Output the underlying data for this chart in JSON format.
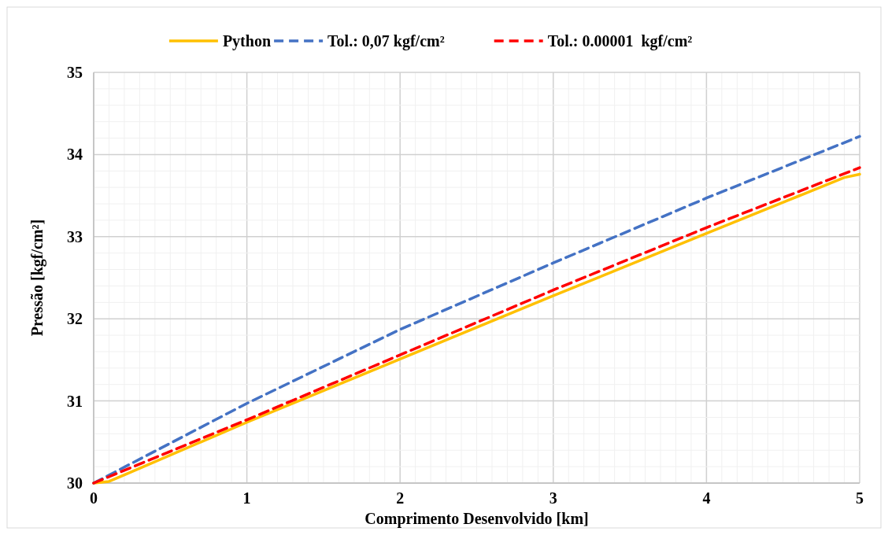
{
  "chart_data": {
    "type": "line",
    "xlabel": "Comprimento Desenvolvido [km]",
    "ylabel": "Pressão [kgf/cm²]",
    "xlim": [
      0,
      5
    ],
    "ylim": [
      30,
      35
    ],
    "xticks": [
      0,
      {
        "value": 0.1,
        "label": null
      },
      {
        "value": 0.2,
        "label": null
      },
      {
        "value": 0.3,
        "label": null
      },
      {
        "value": 0.4,
        "label": null
      },
      {
        "value": 0.5,
        "label": null
      },
      {
        "value": 0.6,
        "label": null
      },
      {
        "value": 0.7,
        "label": null
      },
      {
        "value": 0.8,
        "label": null
      },
      {
        "value": 0.9,
        "label": null
      },
      1,
      {
        "value": 1.1,
        "label": null
      },
      {
        "value": 1.2,
        "label": null
      },
      {
        "value": 1.3,
        "label": null
      },
      {
        "value": 1.4,
        "label": null
      },
      {
        "value": 1.5,
        "label": null
      },
      {
        "value": 1.6,
        "label": null
      },
      {
        "value": 1.7,
        "label": null
      },
      {
        "value": 1.8,
        "label": null
      },
      {
        "value": 1.9,
        "label": null
      },
      2,
      {
        "value": 2.1,
        "label": null
      },
      {
        "value": 2.2,
        "label": null
      },
      {
        "value": 2.3,
        "label": null
      },
      {
        "value": 2.4,
        "label": null
      },
      {
        "value": 2.5,
        "label": null
      },
      {
        "value": 2.6,
        "label": null
      },
      {
        "value": 2.7,
        "label": null
      },
      {
        "value": 2.8,
        "label": null
      },
      {
        "value": 2.9,
        "label": null
      },
      3,
      {
        "value": 3.1,
        "label": null
      },
      {
        "value": 3.2,
        "label": null
      },
      {
        "value": 3.3,
        "label": null
      },
      {
        "value": 3.4,
        "label": null
      },
      {
        "value": 3.5,
        "label": null
      },
      {
        "value": 3.6,
        "label": null
      },
      {
        "value": 3.7,
        "label": null
      },
      {
        "value": 3.8,
        "label": null
      },
      {
        "value": 3.9,
        "label": null
      },
      4,
      {
        "value": 4.1,
        "label": null
      },
      {
        "value": 4.2,
        "label": null
      },
      {
        "value": 4.3,
        "label": null
      },
      {
        "value": 4.4,
        "label": null
      },
      {
        "value": 4.5,
        "label": null
      },
      {
        "value": 4.6,
        "label": null
      },
      {
        "value": 4.7,
        "label": null
      },
      {
        "value": 4.8,
        "label": null
      },
      {
        "value": 4.9,
        "label": null
      },
      5
    ],
    "yticks": [
      30,
      {
        "value": 30.2,
        "label": null
      },
      {
        "value": 30.4,
        "label": null
      },
      {
        "value": 30.6,
        "label": null
      },
      {
        "value": 30.8,
        "label": null
      },
      31,
      {
        "value": 31.2,
        "label": null
      },
      {
        "value": 31.4,
        "label": null
      },
      {
        "value": 31.6,
        "label": null
      },
      {
        "value": 31.8,
        "label": null
      },
      32,
      {
        "value": 32.2,
        "label": null
      },
      {
        "value": 32.4,
        "label": null
      },
      {
        "value": 32.6,
        "label": null
      },
      {
        "value": 32.8,
        "label": null
      },
      33,
      {
        "value": 33.2,
        "label": null
      },
      {
        "value": 33.4,
        "label": null
      },
      {
        "value": 33.6,
        "label": null
      },
      {
        "value": 33.8,
        "label": null
      },
      34,
      {
        "value": 34.2,
        "label": null
      },
      {
        "value": 34.4,
        "label": null
      },
      {
        "value": 34.6,
        "label": null
      },
      {
        "value": 34.8,
        "label": null
      },
      35
    ],
    "grid": true,
    "legend": "top",
    "series": [
      {
        "name": "Python",
        "color": "#ffc000",
        "line_style": "solid",
        "x": [
          0,
          0.1,
          0.2,
          1,
          2,
          3,
          4,
          4.9,
          5
        ],
        "values": [
          30,
          30.02,
          30.1,
          30.74,
          31.51,
          32.28,
          33.04,
          33.72,
          33.76
        ]
      },
      {
        "name": "Tol.: 0,07 kgf/cm²",
        "color": "#4472c4",
        "line_style": "dashed",
        "x": [
          0,
          1,
          2,
          3,
          4,
          5
        ],
        "values": [
          30,
          30.97,
          31.87,
          32.68,
          33.47,
          34.22
        ]
      },
      {
        "name": "Tol.: 0.00001  kgf/cm²",
        "color": "#ff0000",
        "line_style": "dashed",
        "x": [
          0,
          1,
          2,
          3,
          4,
          5
        ],
        "values": [
          30,
          30.77,
          31.56,
          32.35,
          33.11,
          33.84
        ]
      }
    ]
  }
}
